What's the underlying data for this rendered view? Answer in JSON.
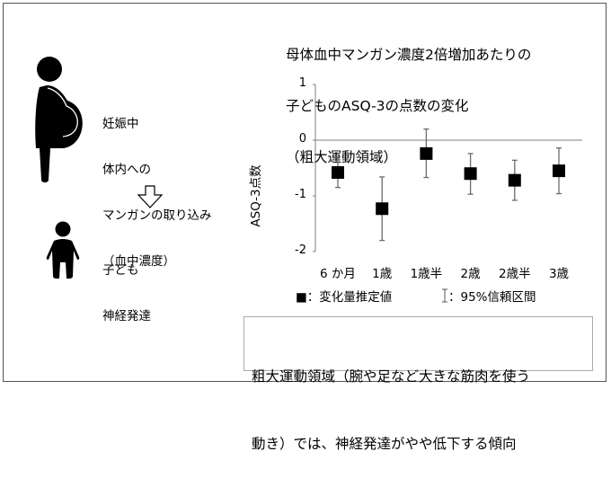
{
  "left_panel": {
    "mother_label_lines": [
      "妊娠中",
      "体内への",
      "マンガンの取り込み",
      "（血中濃度）"
    ],
    "child_label_lines": [
      "子ども",
      "神経発達"
    ],
    "icons": [
      "pregnant-woman-icon",
      "down-arrow-icon",
      "child-icon"
    ]
  },
  "chart_data": {
    "type": "scatter",
    "title": "母体血中マンガン濃度2倍増加あたりの子どものASQ-3の点数の変化（粗大運動領域）",
    "title_lines": [
      "母体血中マンガン濃度2倍増加あたりの",
      "子どものASQ-3の点数の変化",
      "（粗大運動領域）"
    ],
    "xlabel": "",
    "ylabel": "ASQ-3点数",
    "ylim": [
      -2,
      1
    ],
    "yticks": [
      1,
      0,
      -1,
      -2
    ],
    "ytick_labels": [
      "1",
      "0",
      "-1",
      "-2"
    ],
    "categories": [
      "6 か月",
      "1歳",
      "1歳半",
      "2歳",
      "2歳半",
      "3歳"
    ],
    "series": [
      {
        "name": "変化量推定値",
        "values": [
          -0.58,
          -1.23,
          -0.24,
          -0.6,
          -0.72,
          -0.55
        ],
        "ci_upper": [
          -0.3,
          -0.66,
          0.2,
          -0.24,
          -0.36,
          -0.14
        ],
        "ci_lower": [
          -0.85,
          -1.8,
          -0.67,
          -0.97,
          -1.08,
          -0.96
        ]
      }
    ],
    "reference_line": 0,
    "grid": false,
    "legend": {
      "position": "bottom",
      "marker_label": "■：変化量推定値",
      "ci_label": "：95%信頼区間"
    }
  },
  "summary_lines": [
    "粗大運動領域（腕や足など大きな筋肉を使う",
    "動き）では、神経発達がやや低下する傾向"
  ],
  "colors": {
    "axis": "#7f7f7f",
    "marker": "#000000",
    "frame": "#555555",
    "summary_border": "#aaaaaa"
  }
}
